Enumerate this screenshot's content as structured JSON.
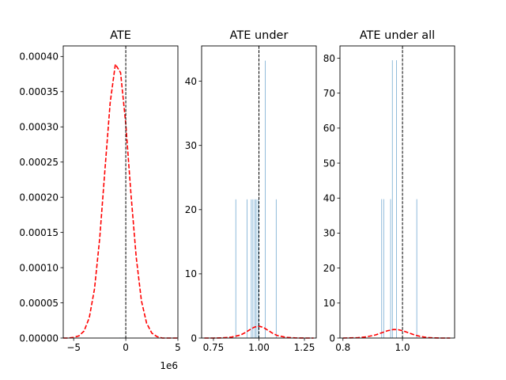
{
  "chart_data": [
    {
      "type": "line",
      "title": "ATE",
      "xlabel": "",
      "ylabel": "",
      "xlim": [
        -6.0,
        5.0
      ],
      "ylim": [
        0,
        0.000415
      ],
      "offset_label": "1e6",
      "x_ticks": [
        -5,
        0,
        5
      ],
      "x_tick_labels": [
        "−5",
        "0",
        "5"
      ],
      "y_ticks": [
        0,
        5e-05,
        0.0001,
        0.00015,
        0.0002,
        0.00025,
        0.0003,
        0.00035,
        0.0004
      ],
      "y_tick_labels": [
        "0.00000",
        "0.00005",
        "0.00010",
        "0.00015",
        "0.00020",
        "0.00025",
        "0.00030",
        "0.00035",
        "0.00040"
      ],
      "vline": 0,
      "series": [
        {
          "kind": "density",
          "color": "#ff0000",
          "style": "dashed",
          "x": [
            -6.0,
            -5.5,
            -5.0,
            -4.5,
            -4.0,
            -3.5,
            -3.0,
            -2.5,
            -2.0,
            -1.5,
            -1.0,
            -0.5,
            0.0,
            0.5,
            1.0,
            1.5,
            2.0,
            2.5,
            3.0,
            3.5,
            4.0,
            4.5,
            5.0
          ],
          "y": [
            0.0,
            0.0,
            1e-06,
            3e-06,
            1e-05,
            2.9e-05,
            7e-05,
            0.000142,
            0.000239,
            0.000334,
            0.000389,
            0.000377,
            0.000304,
            0.000204,
            0.000115,
            5.3e-05,
            2.1e-05,
            7e-06,
            2e-06,
            0.0,
            0.0,
            0.0,
            0.0
          ]
        },
        {
          "kind": "histogram",
          "color": "#1f77b4",
          "x": [
            -0.55,
            -0.3,
            -0.05
          ],
          "y": [
            5e-07,
            5e-07,
            5e-07
          ]
        }
      ]
    },
    {
      "type": "bar",
      "title": "ATE under",
      "xlabel": "",
      "ylabel": "",
      "xlim": [
        0.685,
        1.315
      ],
      "ylim": [
        0,
        45.5
      ],
      "x_ticks": [
        0.75,
        1.0,
        1.25
      ],
      "x_tick_labels": [
        "0.75",
        "1.00",
        "1.25"
      ],
      "y_ticks": [
        0,
        10,
        20,
        30,
        40
      ],
      "y_tick_labels": [
        "0",
        "10",
        "20",
        "30",
        "40"
      ],
      "vline": 1.0,
      "series": [
        {
          "kind": "histogram",
          "color": "#1f77b4",
          "x": [
            0.873,
            0.935,
            0.958,
            0.967,
            0.978,
            0.985,
            0.995,
            1.035,
            1.095
          ],
          "y": [
            21.6,
            21.6,
            21.6,
            21.6,
            21.6,
            21.6,
            21.6,
            43.2,
            21.6
          ]
        },
        {
          "kind": "density",
          "color": "#ff0000",
          "style": "dashed",
          "x": [
            0.7,
            0.75,
            0.8,
            0.85,
            0.9,
            0.925,
            0.95,
            0.975,
            1.0,
            1.025,
            1.05,
            1.075,
            1.1,
            1.15,
            1.2,
            1.25,
            1.3
          ],
          "y": [
            0.0,
            0.0,
            0.03,
            0.15,
            0.48,
            0.85,
            1.3,
            1.7,
            1.85,
            1.65,
            1.2,
            0.75,
            0.4,
            0.1,
            0.02,
            0.0,
            0.0
          ]
        }
      ]
    },
    {
      "type": "bar",
      "title": "ATE under all",
      "xlabel": "",
      "ylabel": "",
      "xlim": [
        0.79,
        1.175
      ],
      "ylim": [
        0,
        83.5
      ],
      "x_ticks": [
        0.8,
        1.0
      ],
      "x_tick_labels": [
        "0.8",
        "1.0"
      ],
      "y_ticks": [
        0,
        10,
        20,
        30,
        40,
        50,
        60,
        70,
        80
      ],
      "y_tick_labels": [
        "0",
        "10",
        "20",
        "30",
        "40",
        "50",
        "60",
        "70",
        "80"
      ],
      "vline": 1.0,
      "series": [
        {
          "kind": "histogram",
          "color": "#1f77b4",
          "x": [
            0.93,
            0.937,
            0.96,
            0.966,
            0.98,
            1.048
          ],
          "y": [
            39.7,
            39.7,
            39.7,
            79.4,
            79.4,
            39.7
          ]
        },
        {
          "kind": "density",
          "color": "#ff0000",
          "style": "dashed",
          "x": [
            0.8,
            0.85,
            0.88,
            0.91,
            0.93,
            0.95,
            0.97,
            0.985,
            1.0,
            1.02,
            1.04,
            1.06,
            1.08,
            1.1,
            1.13,
            1.16
          ],
          "y": [
            0.0,
            0.1,
            0.35,
            0.9,
            1.5,
            2.1,
            2.45,
            2.4,
            2.1,
            1.5,
            0.9,
            0.45,
            0.18,
            0.06,
            0.0,
            0.0
          ]
        }
      ]
    }
  ]
}
